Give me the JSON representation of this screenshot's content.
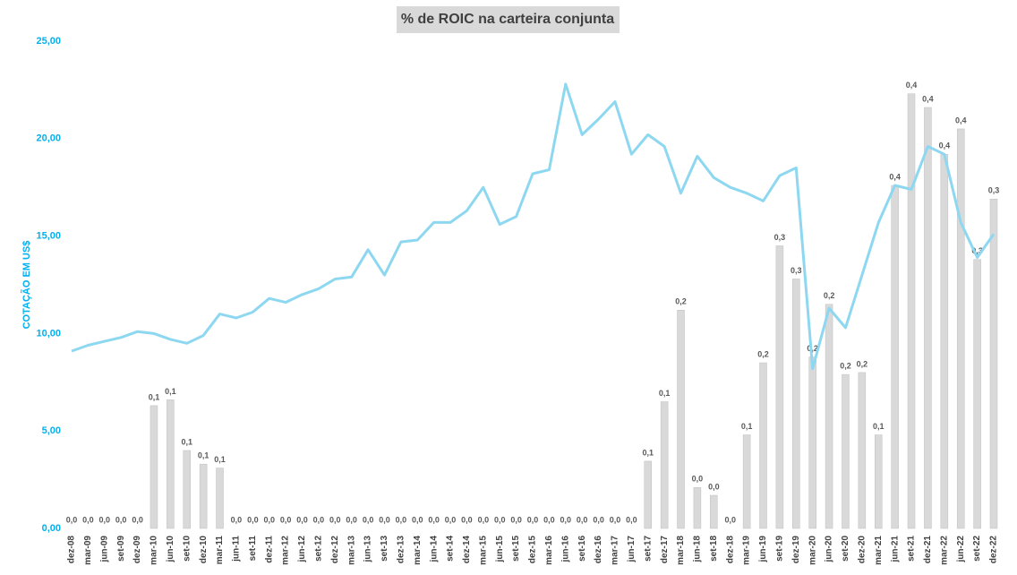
{
  "chart_data": {
    "type": "bar_line",
    "title": "% de ROIC na carteira conjunta",
    "y_label": "COTAÇÃO EM US$",
    "categories": [
      "dez-08",
      "mar-09",
      "jun-09",
      "set-09",
      "dez-09",
      "mar-10",
      "jun-10",
      "set-10",
      "dez-10",
      "mar-11",
      "jun-11",
      "set-11",
      "dez-11",
      "mar-12",
      "jun-12",
      "set-12",
      "dez-12",
      "mar-13",
      "jun-13",
      "set-13",
      "dez-13",
      "mar-14",
      "jun-14",
      "set-14",
      "dez-14",
      "mar-15",
      "jun-15",
      "set-15",
      "dez-15",
      "mar-16",
      "jun-16",
      "set-16",
      "dez-16",
      "mar-17",
      "jun-17",
      "set-17",
      "dez-17",
      "mar-18",
      "jun-18",
      "set-18",
      "dez-18",
      "mar-19",
      "jun-19",
      "set-19",
      "dez-19",
      "mar-20",
      "jun-20",
      "set-20",
      "dez-20",
      "mar-21",
      "jun-21",
      "set-21",
      "dez-21",
      "mar-22",
      "jun-22",
      "set-22",
      "dez-22"
    ],
    "series": [
      {
        "kind": "bar",
        "axis": "y2",
        "color": "#d9d9d9",
        "values": [
          0,
          0,
          0,
          0,
          0,
          0.126,
          0.132,
          0.08,
          0.066,
          0.062,
          0,
          0,
          0,
          0,
          0,
          0,
          0,
          0,
          0,
          0,
          0,
          0,
          0,
          0,
          0,
          0,
          0,
          0,
          0,
          0,
          0,
          0,
          0,
          0,
          0,
          0.069,
          0.13,
          0.224,
          0.042,
          0.034,
          0,
          0.096,
          0.17,
          0.29,
          0.256,
          0.176,
          0.23,
          0.158,
          0.16,
          0.096,
          0.352,
          0.446,
          0.432,
          0.384,
          0.41,
          0.276,
          0.338
        ],
        "value_labels": [
          "0,0",
          "0,0",
          "0,0",
          "0,0",
          "0,0",
          "0,1",
          "0,1",
          "0,1",
          "0,1",
          "0,1",
          "0,0",
          "0,0",
          "0,0",
          "0,0",
          "0,0",
          "0,0",
          "0,0",
          "0,0",
          "0,0",
          "0,0",
          "0,0",
          "0,0",
          "0,0",
          "0,0",
          "0,0",
          "0,0",
          "0,0",
          "0,0",
          "0,0",
          "0,0",
          "0,0",
          "0,0",
          "0,0",
          "0,0",
          "0,0",
          "0,1",
          "0,1",
          "0,2",
          "0,0",
          "0,0",
          "0,0",
          "0,1",
          "0,2",
          "0,3",
          "0,3",
          "0,2",
          "0,2",
          "0,2",
          "0,2",
          "0,1",
          "0,4",
          "0,4",
          "0,4",
          "0,4",
          "0,4",
          "0,3",
          "0,3"
        ]
      },
      {
        "kind": "line",
        "color": "#8dd8f0",
        "values": [
          9.1,
          9.4,
          9.6,
          9.8,
          10.1,
          10.0,
          9.7,
          9.5,
          9.9,
          11.0,
          10.8,
          11.1,
          11.8,
          11.6,
          12.0,
          12.3,
          12.8,
          12.9,
          14.3,
          13.0,
          14.7,
          14.8,
          15.7,
          15.7,
          16.3,
          17.5,
          15.6,
          16.0,
          18.2,
          18.4,
          22.8,
          20.2,
          21.0,
          21.9,
          19.2,
          20.2,
          19.6,
          17.2,
          19.1,
          18.0,
          17.5,
          17.2,
          16.8,
          18.1,
          18.5,
          8.2,
          11.3,
          10.3,
          13.0,
          15.7,
          17.6,
          17.4,
          19.6,
          19.2,
          15.7,
          13.9,
          15.1
        ]
      }
    ],
    "ylim": [
      0,
      25
    ],
    "yticks": [
      {
        "value": 0,
        "label": "0,00"
      },
      {
        "value": 5,
        "label": "5,00"
      },
      {
        "value": 10,
        "label": "10,00"
      },
      {
        "value": 15,
        "label": "15,00"
      },
      {
        "value": 20,
        "label": "20,00"
      },
      {
        "value": 25,
        "label": "25,00"
      }
    ],
    "y2lim": [
      0,
      0.5
    ],
    "axis_color": "#00b0f0"
  }
}
